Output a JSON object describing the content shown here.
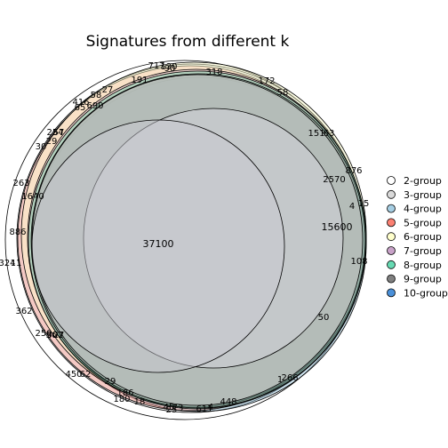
{
  "title": "Signatures from different k",
  "legend": [
    {
      "label": "2-group",
      "color": "#ffffff"
    },
    {
      "label": "3-group",
      "color": "#d9d9d9"
    },
    {
      "label": "4-group",
      "color": "#a6cee3"
    },
    {
      "label": "5-group",
      "color": "#fb8072"
    },
    {
      "label": "6-group",
      "color": "#ffffcc"
    },
    {
      "label": "7-group",
      "color": "#c8a2c8"
    },
    {
      "label": "8-group",
      "color": "#66d9b2"
    },
    {
      "label": "9-group",
      "color": "#808080"
    },
    {
      "label": "10-group",
      "color": "#4a90d9"
    }
  ],
  "region_labels": [
    "717",
    "130",
    "90",
    "318",
    "172",
    "191",
    "58",
    "416",
    "58",
    "27",
    "690",
    "65",
    "151",
    "63",
    "876",
    "2570",
    "15",
    "4",
    "254",
    "57",
    "29",
    "30",
    "263",
    "1640",
    "15600",
    "886",
    "37100",
    "108",
    "324",
    "11",
    "362",
    "250",
    "36",
    "502",
    "27",
    "50",
    "450",
    "62",
    "29",
    "186",
    "1",
    "266",
    "180",
    "18",
    "45",
    "25",
    "73",
    "4",
    "448",
    "611"
  ]
}
